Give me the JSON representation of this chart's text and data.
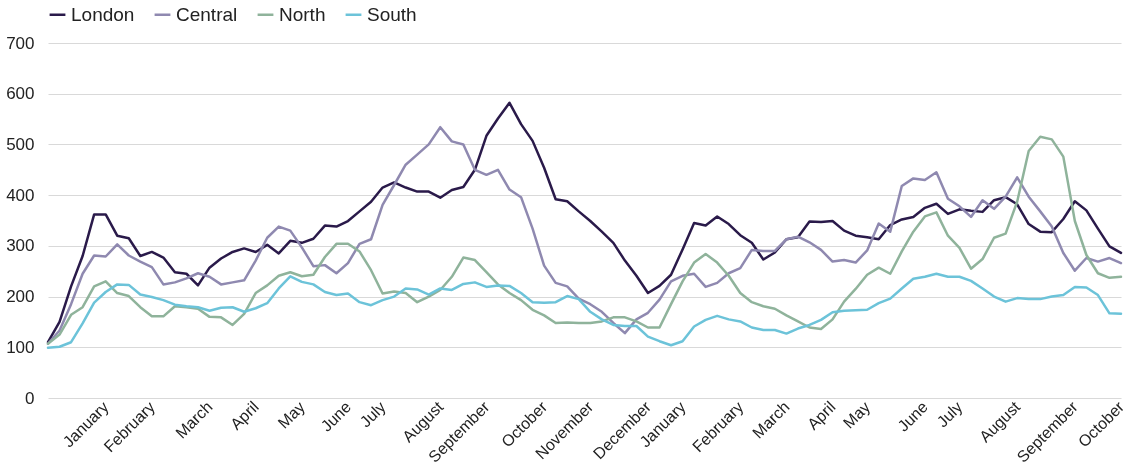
{
  "chart_data": {
    "type": "line",
    "categories": [
      null,
      null,
      null,
      null,
      null,
      "January",
      null,
      null,
      null,
      "February",
      null,
      null,
      null,
      null,
      "March",
      null,
      null,
      null,
      "April",
      null,
      null,
      null,
      "May",
      null,
      null,
      null,
      "June",
      null,
      null,
      "July",
      null,
      null,
      null,
      null,
      "August",
      null,
      null,
      null,
      "September",
      null,
      null,
      null,
      null,
      "October",
      null,
      null,
      null,
      "November",
      null,
      null,
      null,
      null,
      "December",
      null,
      null,
      "January",
      null,
      null,
      null,
      null,
      "February",
      null,
      null,
      null,
      "March",
      null,
      null,
      null,
      "April",
      null,
      null,
      "May",
      null,
      null,
      null,
      null,
      "June",
      null,
      null,
      "July",
      null,
      null,
      null,
      null,
      "August",
      null,
      null,
      null,
      null,
      "September",
      null,
      null,
      null,
      "October"
    ],
    "series": [
      {
        "name": "London",
        "color": "#2a1a4a",
        "values": [
          110,
          150,
          220,
          280,
          362,
          362,
          320,
          315,
          280,
          288,
          277,
          248,
          245,
          222,
          257,
          275,
          288,
          295,
          288,
          302,
          285,
          310,
          306,
          314,
          340,
          338,
          349,
          368,
          387,
          415,
          425,
          415,
          407,
          407,
          395,
          410,
          416,
          450,
          517,
          551,
          582,
          540,
          507,
          454,
          392,
          388,
          368,
          349,
          328,
          306,
          271,
          241,
          207,
          221,
          243,
          293,
          345,
          340,
          358,
          343,
          321,
          306,
          273,
          287,
          313,
          317,
          348,
          347,
          349,
          330,
          320,
          317,
          313,
          341,
          352,
          357,
          375,
          383,
          363,
          372,
          369,
          367,
          390,
          396,
          382,
          343,
          328,
          327,
          353,
          388,
          370,
          334,
          299,
          286
        ]
      },
      {
        "name": "Central",
        "color": "#8f89b0",
        "values": [
          107,
          133,
          185,
          245,
          281,
          279,
          303,
          281,
          269,
          258,
          224,
          228,
          236,
          246,
          239,
          224,
          228,
          232,
          271,
          316,
          338,
          330,
          297,
          260,
          262,
          246,
          266,
          304,
          313,
          381,
          420,
          460,
          480,
          500,
          534,
          506,
          500,
          450,
          440,
          450,
          411,
          396,
          334,
          261,
          227,
          220,
          196,
          185,
          170,
          148,
          128,
          155,
          168,
          194,
          230,
          241,
          245,
          219,
          227,
          246,
          256,
          292,
          290,
          290,
          313,
          318,
          307,
          292,
          269,
          272,
          267,
          291,
          344,
          328,
          418,
          433,
          430,
          445,
          393,
          378,
          357,
          390,
          373,
          397,
          435,
          397,
          368,
          338,
          286,
          251,
          276,
          269,
          276,
          266
        ]
      },
      {
        "name": "North",
        "color": "#8fb39b",
        "values": [
          107,
          125,
          164,
          179,
          220,
          230,
          207,
          201,
          179,
          161,
          161,
          181,
          179,
          176,
          160,
          159,
          144,
          166,
          207,
          222,
          241,
          248,
          240,
          243,
          278,
          304,
          304,
          289,
          252,
          206,
          210,
          207,
          189,
          200,
          213,
          239,
          277,
          272,
          248,
          224,
          207,
          193,
          174,
          163,
          148,
          149,
          148,
          148,
          151,
          159,
          159,
          151,
          139,
          139,
          185,
          230,
          267,
          284,
          267,
          241,
          207,
          189,
          181,
          176,
          163,
          151,
          139,
          136,
          155,
          190,
          215,
          243,
          257,
          245,
          289,
          328,
          358,
          366,
          320,
          296,
          255,
          274,
          316,
          324,
          387,
          487,
          515,
          510,
          476,
          349,
          282,
          246,
          237,
          239
        ]
      },
      {
        "name": "South",
        "color": "#6cc3d9",
        "values": [
          99,
          101,
          110,
          147,
          188,
          209,
          224,
          223,
          204,
          199,
          193,
          184,
          181,
          179,
          172,
          178,
          179,
          170,
          177,
          187,
          216,
          240,
          229,
          224,
          209,
          203,
          206,
          189,
          183,
          193,
          200,
          216,
          214,
          204,
          216,
          213,
          225,
          228,
          219,
          222,
          221,
          207,
          189,
          188,
          189,
          201,
          195,
          170,
          155,
          144,
          142,
          142,
          121,
          112,
          104,
          112,
          141,
          154,
          162,
          155,
          151,
          139,
          134,
          134,
          127,
          137,
          144,
          154,
          169,
          172,
          173,
          174,
          187,
          196,
          216,
          235,
          239,
          245,
          239,
          239,
          231,
          216,
          200,
          190,
          197,
          195,
          195,
          200,
          203,
          219,
          218,
          203,
          167,
          166
        ]
      }
    ],
    "ylim": [
      0,
      700
    ],
    "yticks": [
      0,
      100,
      200,
      300,
      400,
      500,
      600,
      700
    ],
    "grid": "y",
    "legend": "top left",
    "marker": "none",
    "line_style": "solid"
  }
}
